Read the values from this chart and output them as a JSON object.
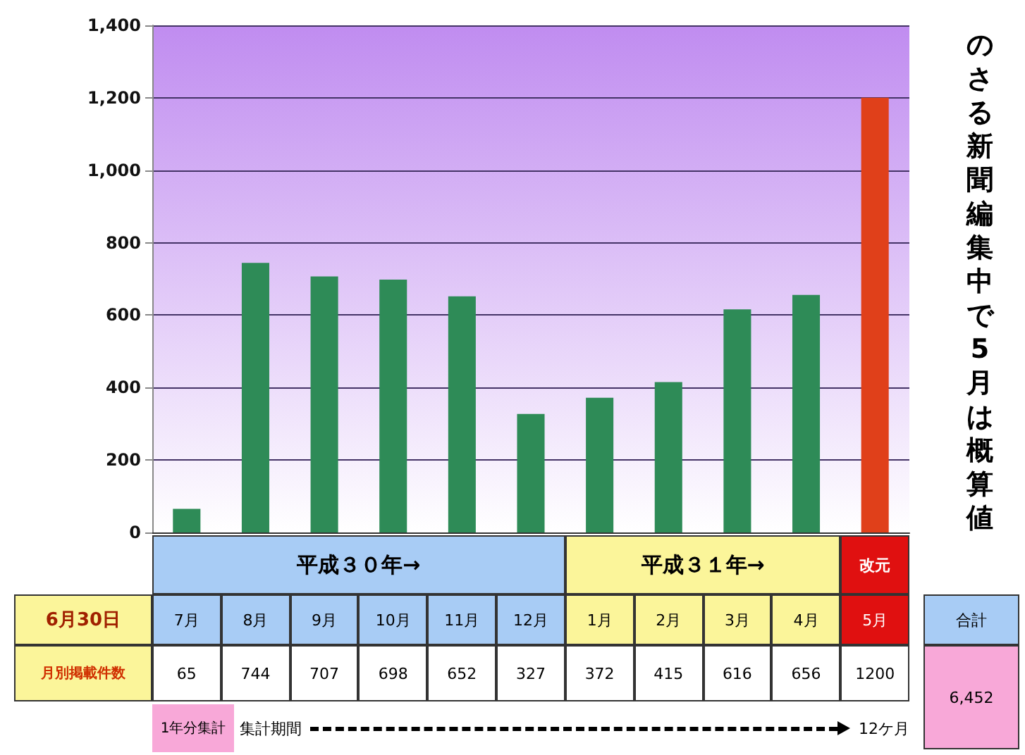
{
  "chart_data": {
    "type": "bar",
    "categories": [
      "7月",
      "8月",
      "9月",
      "10月",
      "11月",
      "12月",
      "1月",
      "2月",
      "3月",
      "4月",
      "5月"
    ],
    "values": [
      65,
      744,
      707,
      698,
      652,
      327,
      372,
      415,
      616,
      656,
      1200
    ],
    "colors": [
      "#2e8b57",
      "#2e8b57",
      "#2e8b57",
      "#2e8b57",
      "#2e8b57",
      "#2e8b57",
      "#2e8b57",
      "#2e8b57",
      "#2e8b57",
      "#2e8b57",
      "#e0401a"
    ],
    "ylim": [
      0,
      1400
    ],
    "yticks": [
      0,
      200,
      400,
      600,
      800,
      {
        "value": 1000,
        "label": "1,000"
      },
      {
        "value": 1200,
        "label": "1,200"
      },
      {
        "value": 1400,
        "label": "1,400"
      }
    ],
    "grid": "y",
    "data_labels": true,
    "annotations": [
      "のさる新聞編集中で5月は概算値",
      "平成３０年→",
      "平成３１年→",
      "改元",
      "6月30日",
      "月別掲載件数",
      "合計",
      "6,452",
      "1年分集計",
      "集計期間",
      "12ケ月"
    ]
  }
}
